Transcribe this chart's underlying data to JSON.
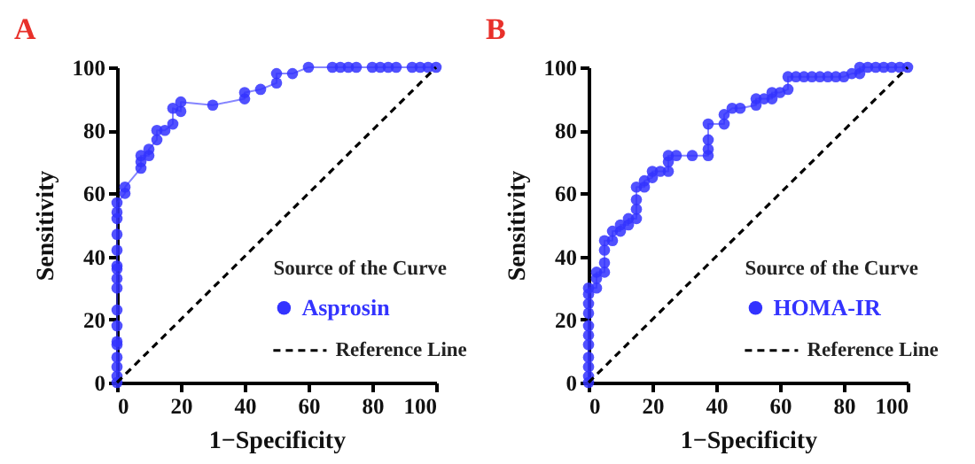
{
  "chart_data": [
    {
      "type": "line",
      "title": "A",
      "xlabel": "1−Specificity",
      "ylabel": "Sensitivity",
      "legend_title": "Source of the Curve",
      "legend": "bottom right",
      "xlim": [
        0,
        100
      ],
      "ylim": [
        0,
        100
      ],
      "xticks": [
        0,
        20,
        40,
        60,
        80,
        100
      ],
      "yticks": [
        0,
        20,
        40,
        60,
        80,
        100
      ],
      "series": [
        {
          "name": "Asprosin",
          "marker": "circle",
          "color": "#3333ff",
          "x": [
            0,
            0,
            0,
            0,
            0,
            0,
            0,
            0,
            0,
            0,
            0,
            0,
            0,
            0,
            0,
            0,
            0,
            2.5,
            2.5,
            7.5,
            7.5,
            7.5,
            10,
            10,
            12.5,
            12.5,
            15,
            17.5,
            17.5,
            20,
            20,
            30,
            40,
            40,
            45,
            50,
            50,
            55,
            60,
            67.5,
            70,
            72.5,
            75,
            80,
            82.5,
            85,
            87.5,
            92.5,
            95,
            97.5,
            100
          ],
          "values": [
            0,
            2,
            5,
            8,
            12,
            13,
            18,
            23,
            30,
            33,
            36,
            37,
            42,
            47,
            52,
            54,
            57,
            60,
            62,
            68,
            70,
            72,
            72,
            74,
            77,
            80,
            80,
            82,
            87,
            86,
            89,
            88,
            90,
            92,
            93,
            95,
            98,
            98,
            100,
            100,
            100,
            100,
            100,
            100,
            100,
            100,
            100,
            100,
            100,
            100,
            100
          ]
        },
        {
          "name": "Reference Line",
          "marker": "none",
          "line_style": "dashed",
          "color": "#000000",
          "x": [
            0,
            100
          ],
          "values": [
            0,
            100
          ]
        }
      ]
    },
    {
      "type": "line",
      "title": "B",
      "xlabel": "1−Specificity",
      "ylabel": "Sensitivity",
      "legend_title": "Source of the Curve",
      "legend": "bottom right",
      "xlim": [
        0,
        100
      ],
      "ylim": [
        0,
        100
      ],
      "xticks": [
        0,
        20,
        40,
        60,
        80,
        100
      ],
      "yticks": [
        0,
        20,
        40,
        60,
        80,
        100
      ],
      "series": [
        {
          "name": "HOMA-IR",
          "marker": "circle",
          "color": "#3333ff",
          "x": [
            0,
            0,
            0,
            0,
            0,
            0,
            0,
            0,
            0,
            0,
            0,
            2.5,
            2.5,
            2.5,
            5,
            5,
            5,
            5,
            7.5,
            7.5,
            10,
            10,
            12.5,
            12.5,
            15,
            15,
            15,
            15,
            17.5,
            17.5,
            20,
            20,
            22.5,
            25,
            25,
            25,
            27.5,
            32.5,
            37.5,
            37.5,
            37.5,
            37.5,
            42.5,
            42.5,
            45,
            47.5,
            52.5,
            52.5,
            55,
            57.5,
            57.5,
            60,
            62.5,
            62.5,
            65,
            67.5,
            70,
            72.5,
            75,
            77.5,
            80,
            82.5,
            85,
            85,
            87.5,
            90,
            92.5,
            95,
            97.5,
            100
          ],
          "values": [
            0,
            2,
            5,
            8,
            12,
            15,
            18,
            22,
            25,
            28,
            30,
            30,
            33,
            35,
            35,
            38,
            42,
            45,
            45,
            48,
            48,
            50,
            50,
            52,
            52,
            55,
            58,
            62,
            62,
            64,
            65,
            67,
            67,
            67,
            70,
            72,
            72,
            72,
            72,
            74,
            77,
            82,
            82,
            85,
            87,
            87,
            88,
            90,
            90,
            90,
            92,
            92,
            93,
            97,
            97,
            97,
            97,
            97,
            97,
            97,
            97,
            98,
            98,
            100,
            100,
            100,
            100,
            100,
            100,
            100
          ]
        },
        {
          "name": "Reference Line",
          "marker": "none",
          "line_style": "dashed",
          "color": "#000000",
          "x": [
            0,
            100
          ],
          "values": [
            0,
            100
          ]
        }
      ]
    }
  ]
}
